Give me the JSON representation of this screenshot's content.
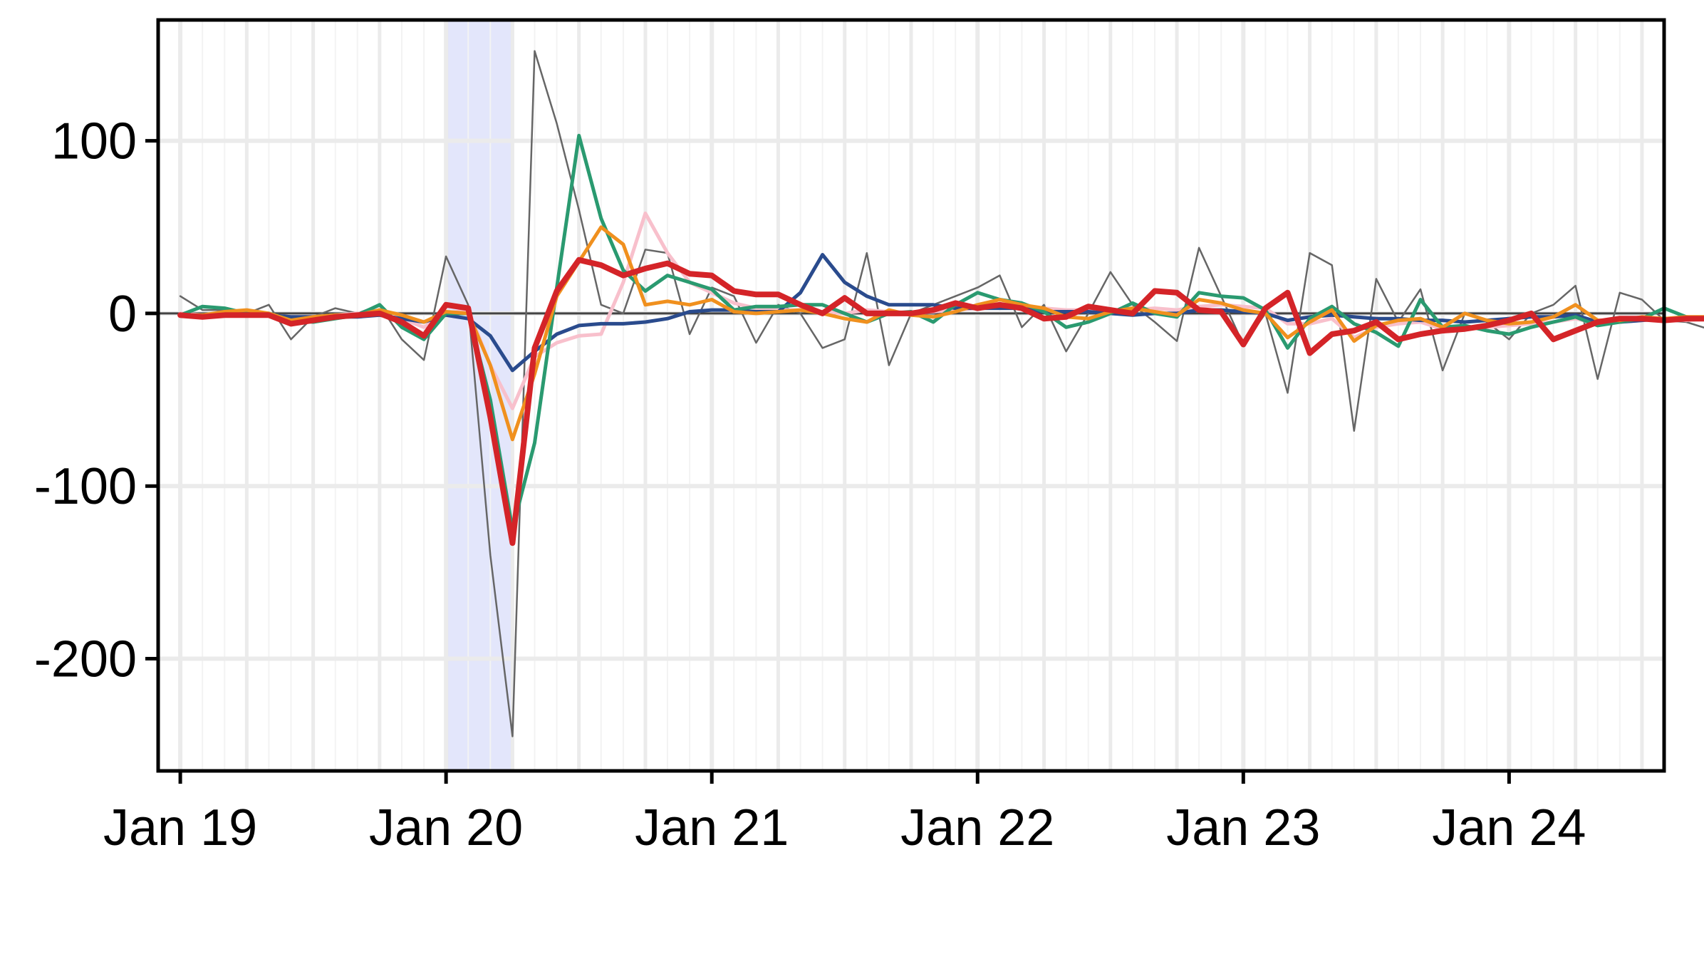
{
  "chart_data": {
    "type": "line",
    "title": "",
    "xlabel": "",
    "ylabel": "",
    "grid": true,
    "legend": "none",
    "x_range": [
      "2018-12",
      "2024-08"
    ],
    "ylim": [
      -265,
      170
    ],
    "x_ticks": [
      {
        "date": "2019-01",
        "label": "Jan 19"
      },
      {
        "date": "2020-01",
        "label": "Jan 20"
      },
      {
        "date": "2021-01",
        "label": "Jan 21"
      },
      {
        "date": "2022-01",
        "label": "Jan 22"
      },
      {
        "date": "2023-01",
        "label": "Jan 23"
      },
      {
        "date": "2024-01",
        "label": "Jan 24"
      }
    ],
    "y_ticks": [
      {
        "value": 100,
        "label": "100"
      },
      {
        "value": 0,
        "label": "0"
      },
      {
        "value": -100,
        "label": "-100"
      },
      {
        "value": -200,
        "label": "-200"
      }
    ],
    "shaded_regions": [
      {
        "start": "2020-01",
        "end": "2020-04",
        "color": "#e3e6fb"
      }
    ],
    "zero_line": 0,
    "start_date": "2019-01",
    "series": [
      {
        "color": "#666666",
        "width": 2.5,
        "values": [
          10,
          2,
          2,
          0,
          5,
          -15,
          -2,
          3,
          0,
          5,
          -15,
          -27,
          33,
          5,
          -140,
          -245,
          152,
          110,
          60,
          5,
          0,
          37,
          35,
          -12,
          15,
          10,
          -17,
          5,
          0,
          -20,
          -15,
          35,
          -30,
          0,
          5,
          10,
          15,
          22,
          -8,
          5,
          -22,
          0,
          24,
          5,
          -5,
          -16,
          38,
          10,
          -18,
          0,
          -46,
          35,
          28,
          -68,
          20,
          -5,
          14,
          -33,
          0,
          -5,
          -15,
          0,
          5,
          16,
          -38,
          12,
          8,
          -4,
          -5,
          -9,
          -5,
          -6,
          20
        ]
      },
      {
        "color": "#f8c0cc",
        "width": 5,
        "values": [
          0,
          -1,
          0,
          0,
          -1,
          -2,
          -2,
          -1,
          0,
          -1,
          -3,
          -8,
          0,
          2,
          -30,
          -55,
          -25,
          -17,
          -13,
          -12,
          18,
          58,
          35,
          18,
          12,
          6,
          3,
          2,
          2,
          1,
          0,
          2,
          1,
          0,
          1,
          2,
          3,
          4,
          4,
          3,
          2,
          2,
          1,
          2,
          3,
          2,
          4,
          5,
          4,
          3,
          -6,
          -6,
          -3,
          -14,
          -8,
          -6,
          -5,
          -9,
          -8,
          -8,
          -7,
          -6,
          -5,
          -3,
          -6,
          -5,
          -4,
          -3,
          -4,
          -3,
          -3,
          -2,
          -1
        ]
      },
      {
        "color": "#2a4b8d",
        "width": 5,
        "values": [
          -1,
          -1,
          -1,
          -1,
          -1,
          -2,
          -2,
          -2,
          -2,
          -1,
          -3,
          -5,
          -1,
          -3,
          -13,
          -33,
          -22,
          -12,
          -7,
          -6,
          -6,
          -5,
          -3,
          1,
          2,
          2,
          1,
          1,
          12,
          34,
          18,
          10,
          5,
          5,
          5,
          3,
          3,
          3,
          3,
          1,
          1,
          1,
          0,
          -1,
          0,
          0,
          2,
          2,
          1,
          0,
          -4,
          -2,
          -1,
          -2,
          -3,
          -3,
          -4,
          -4,
          -5,
          -4,
          -3,
          -2,
          -2,
          -1,
          -5,
          -5,
          -4,
          -3,
          -3,
          -2,
          -1,
          -1,
          -1
        ]
      },
      {
        "color": "#2a9a70",
        "width": 5,
        "values": [
          -1,
          4,
          3,
          0,
          0,
          -4,
          -5,
          -3,
          -1,
          5,
          -8,
          -15,
          0,
          0,
          -50,
          -125,
          -75,
          15,
          103,
          55,
          25,
          13,
          22,
          18,
          14,
          2,
          4,
          4,
          5,
          5,
          0,
          -5,
          0,
          1,
          -5,
          5,
          12,
          8,
          6,
          1,
          -8,
          -5,
          0,
          6,
          0,
          -2,
          12,
          10,
          9,
          2,
          -20,
          -3,
          4,
          -6,
          -11,
          -19,
          8,
          -8,
          -7,
          -10,
          -12,
          -8,
          -5,
          -2,
          -7,
          -5,
          -3,
          3,
          -2,
          -3,
          -1,
          -2,
          3
        ]
      },
      {
        "color": "#f0901e",
        "width": 5,
        "values": [
          -1,
          -1,
          1,
          2,
          0,
          -4,
          -2,
          -1,
          -1,
          2,
          -1,
          -5,
          1,
          0,
          -30,
          -73,
          -35,
          10,
          30,
          50,
          40,
          5,
          7,
          5,
          8,
          1,
          0,
          1,
          2,
          0,
          -3,
          -5,
          2,
          -1,
          -2,
          1,
          5,
          8,
          5,
          3,
          -2,
          -3,
          1,
          3,
          1,
          -1,
          8,
          6,
          2,
          0,
          -14,
          -5,
          2,
          -16,
          -7,
          -4,
          -3,
          -8,
          0,
          -4,
          -6,
          -5,
          -2,
          5,
          -4,
          -4,
          -2,
          -3,
          -2,
          -2,
          1,
          -2,
          4
        ]
      },
      {
        "color": "#d42428",
        "width": 8,
        "values": [
          -1,
          -2,
          -1,
          -1,
          -1,
          -6,
          -4,
          -2,
          -1,
          0,
          -5,
          -13,
          5,
          3,
          -60,
          -133,
          -20,
          13,
          31,
          28,
          22,
          26,
          29,
          23,
          22,
          13,
          11,
          11,
          5,
          0,
          9,
          0,
          0,
          0,
          2,
          6,
          3,
          5,
          3,
          -3,
          -2,
          4,
          2,
          0,
          13,
          12,
          2,
          1,
          -18,
          3,
          12,
          -23,
          -12,
          -10,
          -5,
          -15,
          -12,
          -10,
          -9,
          -7,
          -4,
          0,
          -15,
          -10,
          -5,
          -3,
          -3,
          -4,
          -3,
          -3,
          -3,
          4
        ]
      }
    ]
  }
}
